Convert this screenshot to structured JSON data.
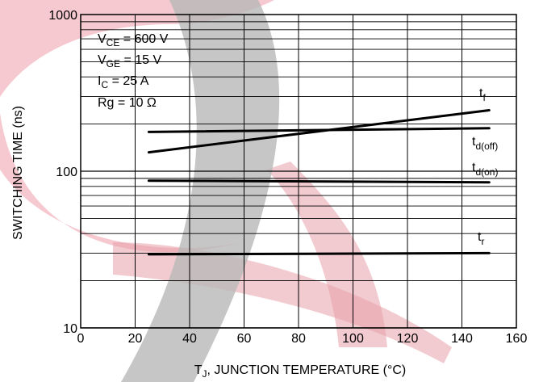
{
  "chart_data": {
    "type": "line",
    "title": "",
    "xlabel": "T",
    "xlabel_sub": "J",
    "xlabel_rest": ", JUNCTION TEMPERATURE (°C)",
    "ylabel": "SWITCHING TIME (ns)",
    "xlim": [
      0,
      160
    ],
    "ylim": [
      10,
      1000
    ],
    "yscale": "log",
    "grid": true,
    "x_ticks": [
      "0",
      "20",
      "40",
      "60",
      "80",
      "100",
      "120",
      "140",
      "160"
    ],
    "y_ticks": [
      "10",
      "100",
      "1000"
    ],
    "conditions": [
      {
        "main": "V",
        "sub": "CE",
        "rest": " = 600 V"
      },
      {
        "main": "V",
        "sub": "GE",
        "rest": " = 15 V"
      },
      {
        "main": "I",
        "sub": "C",
        "rest": " = 25 A"
      },
      {
        "main": "Rg = 10 Ω",
        "sub": "",
        "rest": ""
      }
    ],
    "series": [
      {
        "name": "t",
        "sub": "f",
        "x": [
          25,
          150
        ],
        "y": [
          132,
          245
        ]
      },
      {
        "name": "t",
        "sub": "d(off)",
        "x": [
          25,
          150
        ],
        "y": [
          178,
          188
        ]
      },
      {
        "name": "t",
        "sub": "d(on)",
        "x": [
          25,
          150
        ],
        "y": [
          87,
          85
        ]
      },
      {
        "name": "t",
        "sub": "r",
        "x": [
          25,
          150
        ],
        "y": [
          29.5,
          30
        ]
      }
    ]
  },
  "colors": {
    "watermark": "#e8a0aa",
    "watermark_gray": "#b4b4b4",
    "line": "#000000",
    "grid": "#000000"
  }
}
